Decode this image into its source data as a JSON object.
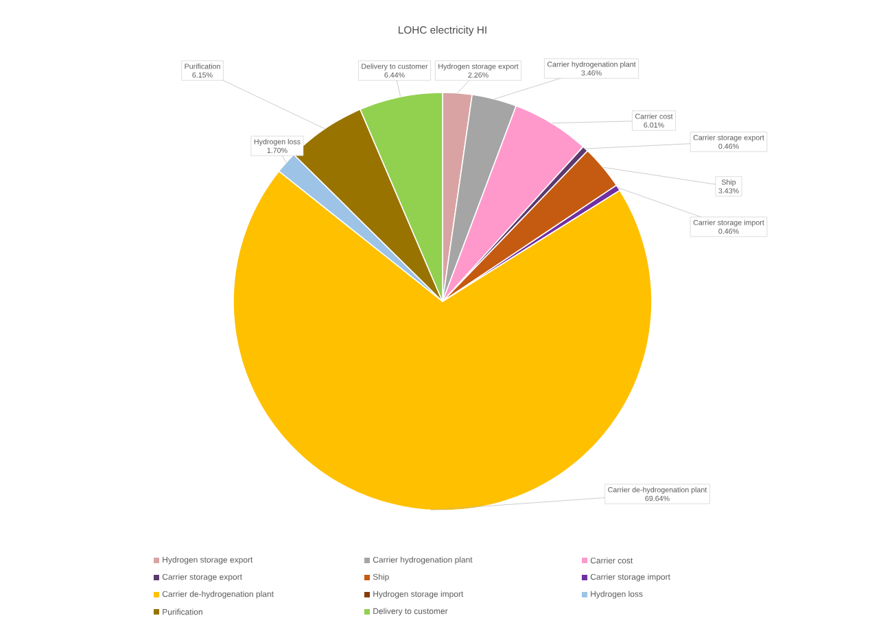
{
  "chart_data": {
    "type": "pie",
    "title": "LOHC electricity HI",
    "categories": [
      "Hydrogen storage export",
      "Carrier hydrogenation plant",
      "Carrier cost",
      "Carrier storage export",
      "Ship",
      "Carrier storage import",
      "Carrier de-hydrogenation plant",
      "Hydrogen storage import",
      "Hydrogen loss",
      "Purification",
      "Delivery to customer"
    ],
    "values": [
      2.26,
      3.46,
      6.01,
      0.46,
      3.43,
      0.46,
      69.64,
      0,
      1.7,
      6.15,
      6.44
    ],
    "value_labels": [
      "2.26%",
      "3.46%",
      "6.01%",
      "0.46%",
      "3.43%",
      "0.46%",
      "69.64%",
      null,
      "1.70%",
      "6.15%",
      "6.44%"
    ],
    "colors": [
      "#d9a3a3",
      "#a5a5a5",
      "#ff99cc",
      "#5b3a6e",
      "#c55a11",
      "#7030a0",
      "#ffc000",
      "#843c0c",
      "#9dc3e6",
      "#997300",
      "#92d050"
    ],
    "legend": "bottom"
  }
}
